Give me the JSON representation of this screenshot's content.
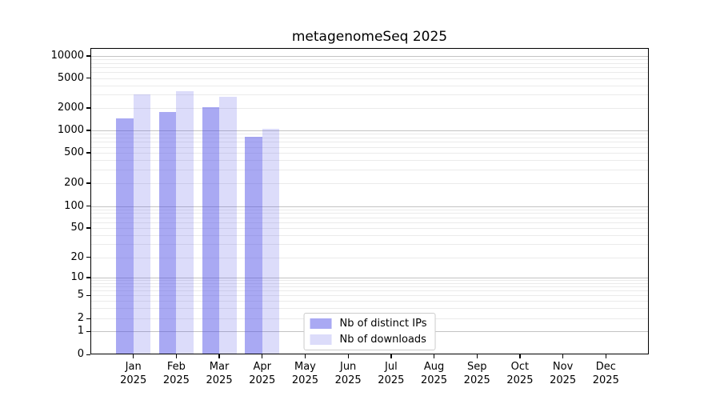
{
  "chart_data": {
    "type": "bar",
    "title": "metagenomeSeq 2025",
    "categories": [
      "Jan 2025",
      "Feb 2025",
      "Mar 2025",
      "Apr 2025",
      "May 2025",
      "Jun 2025",
      "Jul 2025",
      "Aug 2025",
      "Sep 2025",
      "Oct 2025",
      "Nov 2025",
      "Dec 2025"
    ],
    "series": [
      {
        "name": "Nb of distinct IPs",
        "color": "rgba(80,80,230,0.49)",
        "values": [
          1440,
          1770,
          2030,
          830,
          null,
          null,
          null,
          null,
          null,
          null,
          null,
          null
        ]
      },
      {
        "name": "Nb of downloads",
        "color": "rgba(80,80,230,0.20)",
        "values": [
          3010,
          3330,
          2840,
          1050,
          null,
          null,
          null,
          null,
          null,
          null,
          null,
          null
        ]
      }
    ],
    "yticks": [
      0,
      1,
      2,
      5,
      10,
      20,
      50,
      100,
      200,
      500,
      1000,
      2000,
      5000,
      10000
    ],
    "yscale": "log (1-2-5 ladder with 0 baseline)",
    "xlabel": "",
    "ylabel": "",
    "grid": true,
    "legend_position": "bottom-center-inside",
    "colors": {
      "bar_distinct_ips": "#a6a6f2",
      "bar_downloads": "#dbdbf9",
      "grid_major": "#c3c3c3",
      "grid_minor": "#ebebeb",
      "axis": "#000000"
    }
  }
}
